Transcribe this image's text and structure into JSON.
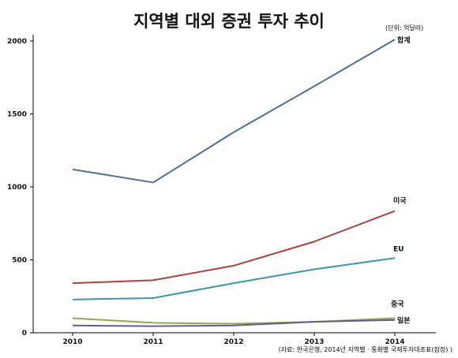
{
  "chart_data": {
    "type": "line",
    "title": "지역별 대외 증권 투자 추이",
    "unit_label": "(단위: 억달러)",
    "source": "(자료: 한국은행, 2014년 지역별 · 통화별 국제투자대조표(잠정) )",
    "x": [
      "2010",
      "2011",
      "2012",
      "2013",
      "2014"
    ],
    "ylim": [
      0,
      2000
    ],
    "yticks": [
      0,
      500,
      1000,
      1500,
      2000
    ],
    "grid": false,
    "series": [
      {
        "name": "합계",
        "color": "#4a6f99",
        "values": [
          1120,
          1030,
          1375,
          1690,
          2010
        ]
      },
      {
        "name": "미국",
        "color": "#a9423f",
        "values": [
          340,
          360,
          460,
          625,
          835
        ]
      },
      {
        "name": "EU",
        "color": "#3f93ae",
        "values": [
          228,
          238,
          340,
          435,
          512
        ]
      },
      {
        "name": "중국",
        "color": "#8aab4f",
        "values": [
          100,
          68,
          62,
          75,
          100
        ]
      },
      {
        "name": "일본",
        "color": "#6b5b8c",
        "values": [
          50,
          45,
          50,
          75,
          88
        ]
      }
    ]
  }
}
